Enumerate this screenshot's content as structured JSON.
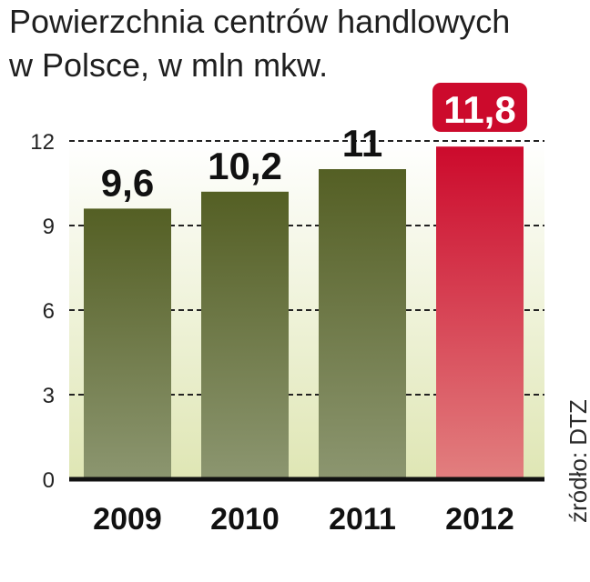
{
  "title_lines": [
    "Powierzchnia centrów handlowych",
    "w Polsce, w mln mkw."
  ],
  "source": "źródło: DTZ",
  "colors": {
    "bar_top": "#545f24",
    "bar_bottom": "#8c9670",
    "highlight_top": "#cc0a2c",
    "highlight_bottom": "#e27f7f",
    "background_top": "#ffffff",
    "background_bottom": "#dfe6b4",
    "grid": "#222222",
    "baseline": "#111111"
  },
  "chart_data": {
    "type": "bar",
    "categories": [
      "2009",
      "2010",
      "2011",
      "2012"
    ],
    "values": [
      9.6,
      10.2,
      11,
      11.8
    ],
    "value_labels": [
      "9,6",
      "10,2",
      "11",
      "11,8"
    ],
    "highlight_index": 3,
    "yticks": [
      0,
      3,
      6,
      9,
      12
    ],
    "ylim": [
      0,
      12
    ],
    "grid": true,
    "grid_style": "dashed",
    "title": "Powierzchnia centrów handlowych w Polsce, w mln mkw.",
    "xlabel": "",
    "ylabel": ""
  }
}
